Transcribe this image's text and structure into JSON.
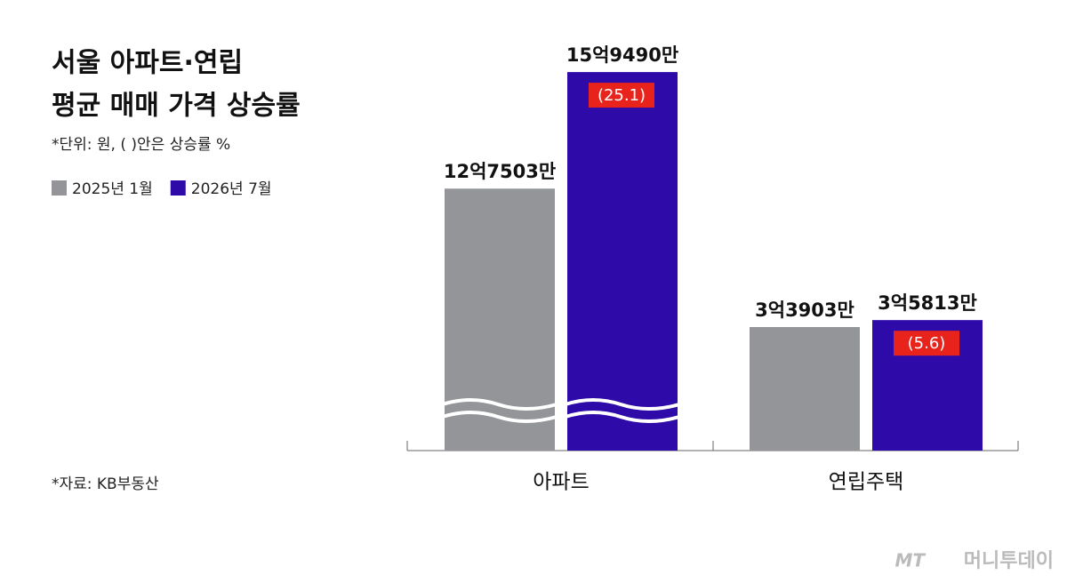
{
  "chart_data": {
    "type": "bar",
    "title": [
      "서울 아파트·연립",
      "평균 매매 가격 상승률"
    ],
    "subtitle": "*단위: 원, ( )안은 상승률 %",
    "source": "*자료: KB부동산",
    "categories": [
      "아파트",
      "연립주택"
    ],
    "series": [
      {
        "name": "2025년 1월",
        "color": "#939598",
        "values": [
          1275030000,
          339030000
        ],
        "value_labels": [
          "12억7503만",
          "3억3903만"
        ]
      },
      {
        "name": "2026년 7월",
        "color": "#2e0aa8",
        "values": [
          1594900000,
          358130000
        ],
        "value_labels": [
          "15억9490만",
          "3억5813만"
        ]
      }
    ],
    "changes": [
      25.1,
      5.6
    ],
    "change_labels": [
      "(25.1)",
      "(5.6)"
    ],
    "change_color": "#e8231c",
    "axis_break": true,
    "legend": "top-left"
  },
  "logo": {
    "mark": "MT",
    "name": "머니투데이"
  }
}
